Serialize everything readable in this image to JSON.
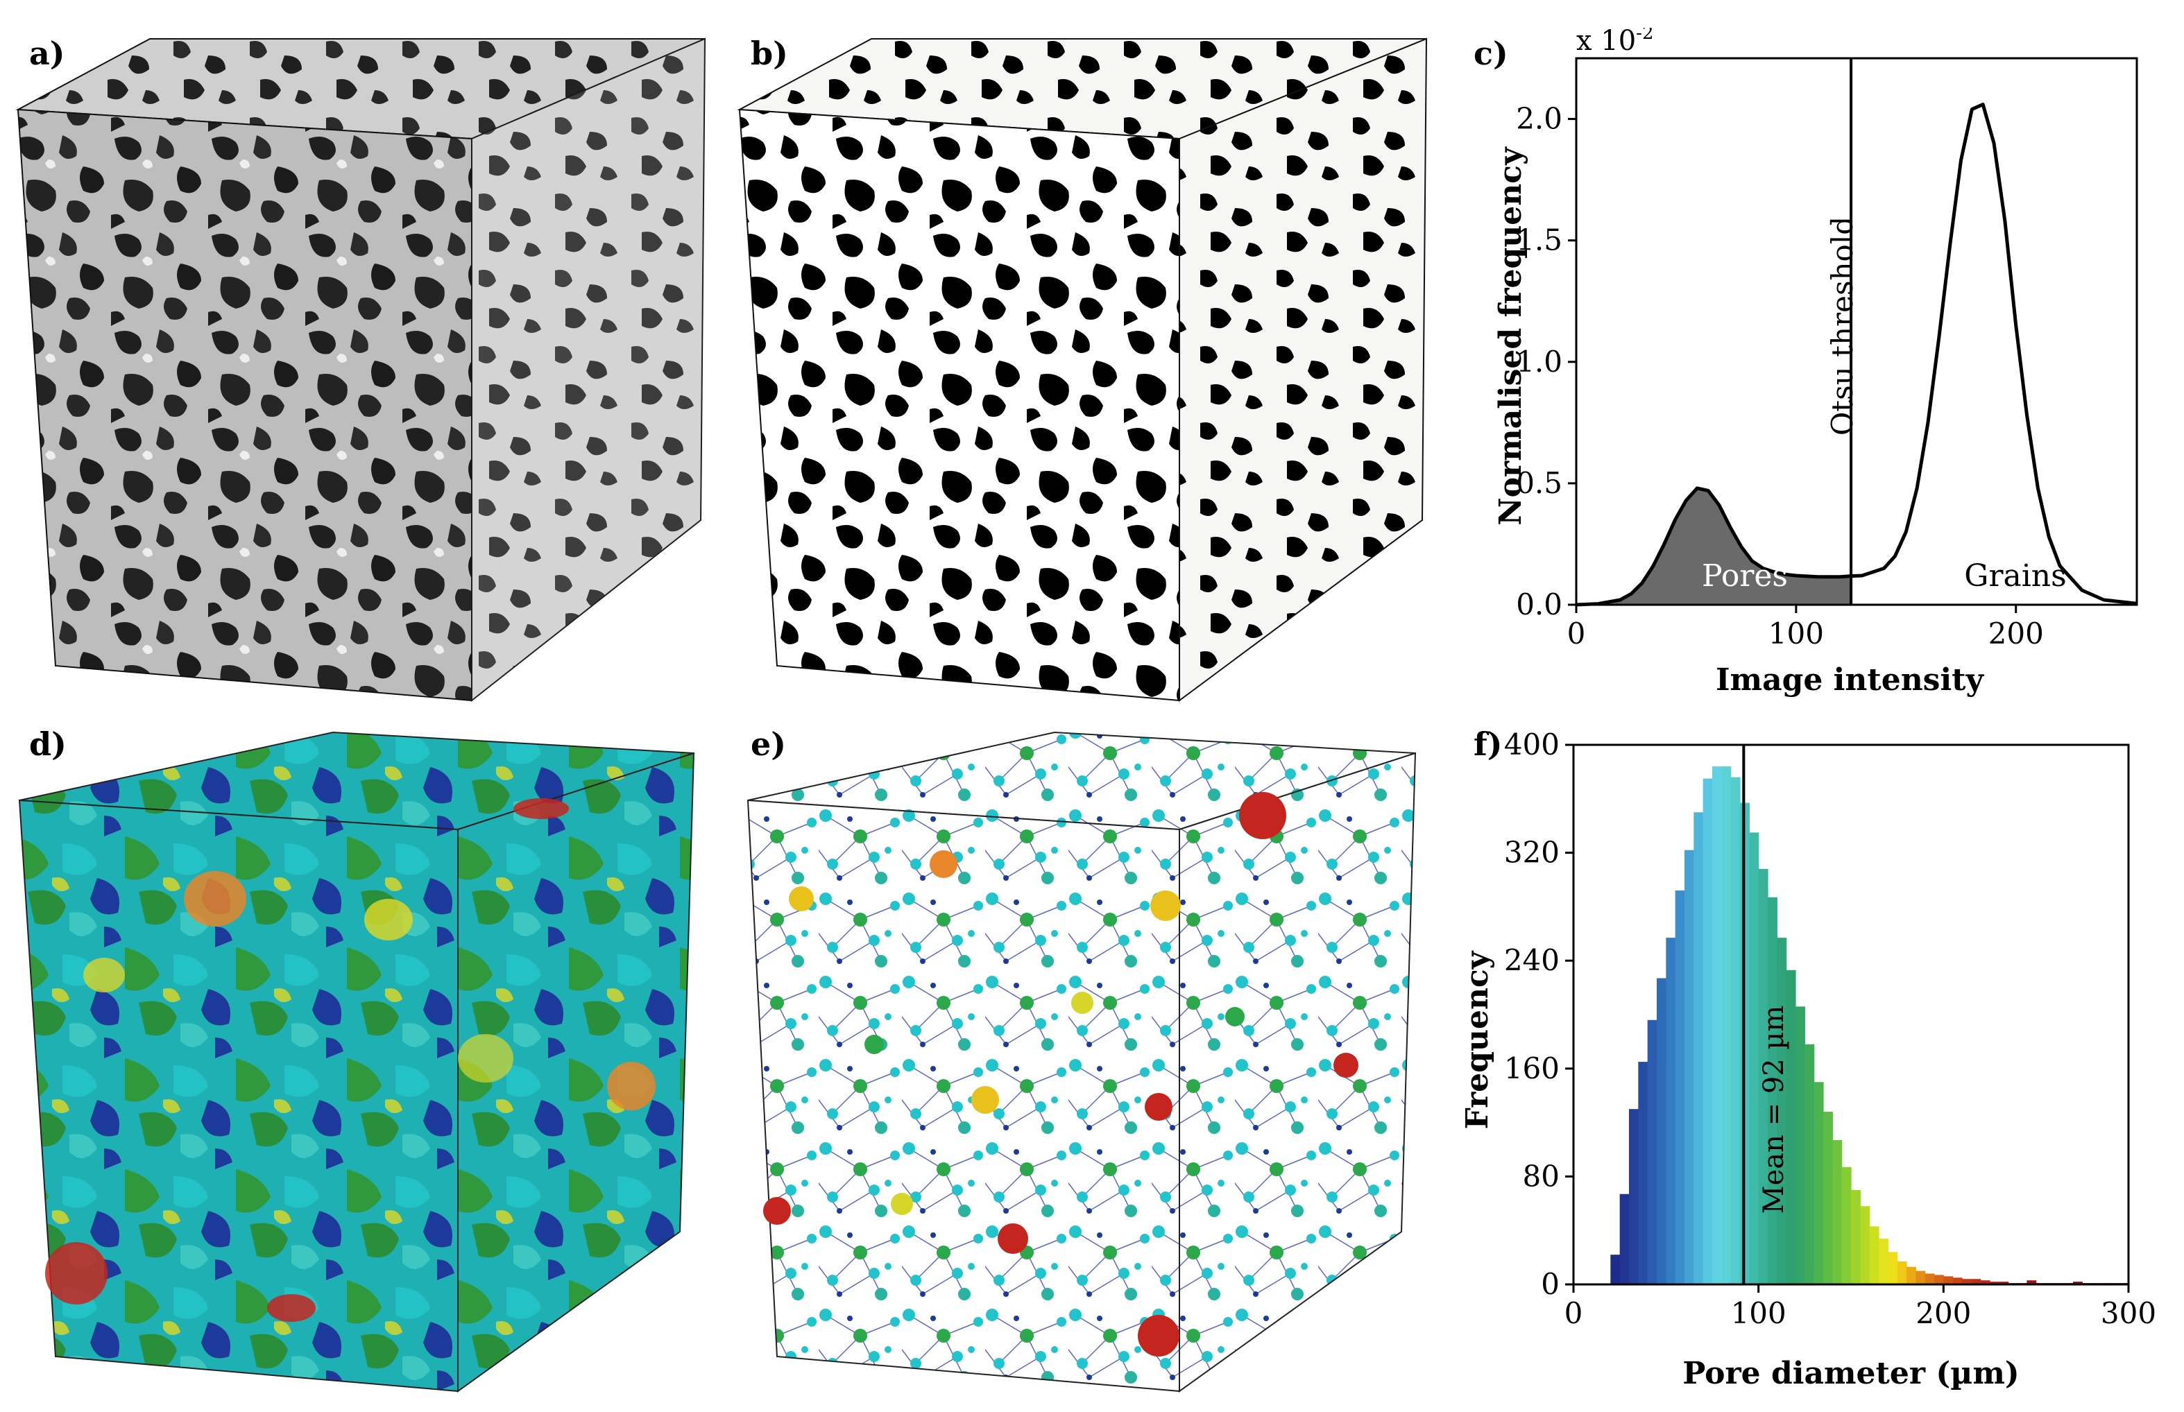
{
  "panels": {
    "a": "a)",
    "b": "b)",
    "c": "c)",
    "d": "d)",
    "e": "e)",
    "f": "f)"
  },
  "colors": {
    "pore_fill": "#6a6a6a",
    "grain_gray": "#bcbcbc",
    "pore_dark": "#202020",
    "binary_white": "#ffffff",
    "binary_black": "#000000",
    "segment_teal": "#19b3b3",
    "segment_green": "#2e9a3c",
    "segment_blue": "#1d3a9a",
    "segment_yellow": "#d6d62a",
    "segment_orange": "#e8862a",
    "segment_red": "#c4261f"
  },
  "chart_data": [
    {
      "type": "area",
      "panel": "c)",
      "title": "",
      "xlabel": "Image intensity",
      "ylabel": "Normalised frequency",
      "scale_note_base": "x 10",
      "scale_note_exp": "-2",
      "xlim": [
        0,
        255
      ],
      "ylim": [
        0,
        2.25
      ],
      "xticks": [
        "0",
        "100",
        "200"
      ],
      "xtick_values": [
        0,
        100,
        200
      ],
      "yticks": [
        "0.0",
        "0.5",
        "1.0",
        "1.5",
        "2.0"
      ],
      "ytick_values": [
        0.0,
        0.5,
        1.0,
        1.5,
        2.0
      ],
      "threshold": {
        "x": 125,
        "label": "Otsu threshold"
      },
      "region_labels": {
        "pores": "Pores",
        "grains": "Grains"
      },
      "x": [
        0,
        10,
        20,
        25,
        30,
        35,
        40,
        45,
        50,
        55,
        60,
        65,
        70,
        75,
        80,
        85,
        90,
        95,
        100,
        110,
        120,
        125,
        130,
        140,
        145,
        150,
        155,
        160,
        165,
        170,
        175,
        180,
        185,
        190,
        195,
        200,
        205,
        210,
        215,
        220,
        230,
        240,
        255
      ],
      "y": [
        0.0,
        0.004,
        0.02,
        0.045,
        0.09,
        0.16,
        0.25,
        0.35,
        0.43,
        0.48,
        0.47,
        0.41,
        0.32,
        0.24,
        0.18,
        0.15,
        0.135,
        0.125,
        0.12,
        0.115,
        0.115,
        0.118,
        0.12,
        0.15,
        0.2,
        0.3,
        0.48,
        0.75,
        1.1,
        1.48,
        1.83,
        2.04,
        2.06,
        1.9,
        1.58,
        1.15,
        0.78,
        0.48,
        0.28,
        0.16,
        0.06,
        0.02,
        0.005
      ]
    },
    {
      "type": "bar",
      "panel": "f)",
      "title": "",
      "xlabel": "Pore diameter (µm)",
      "ylabel": "Frequency",
      "xlim": [
        0,
        300
      ],
      "ylim": [
        0,
        400
      ],
      "xticks": [
        "0",
        "100",
        "200",
        "300"
      ],
      "xtick_values": [
        0,
        100,
        200,
        300
      ],
      "yticks": [
        "0",
        "80",
        "160",
        "240",
        "320",
        "400"
      ],
      "ytick_values": [
        0,
        80,
        160,
        240,
        320,
        400
      ],
      "mean": {
        "x": 92,
        "label": "Mean = 92 µm"
      },
      "bin_width": 5,
      "bin_starts": [
        20,
        25,
        30,
        35,
        40,
        45,
        50,
        55,
        60,
        65,
        70,
        75,
        80,
        85,
        90,
        95,
        100,
        105,
        110,
        115,
        120,
        125,
        130,
        135,
        140,
        145,
        150,
        155,
        160,
        165,
        170,
        175,
        180,
        185,
        190,
        195,
        200,
        205,
        210,
        215,
        220,
        225,
        230,
        235,
        240,
        245,
        250,
        255,
        260,
        265,
        270,
        275,
        280,
        285,
        290,
        295
      ],
      "values": [
        22,
        67,
        130,
        165,
        196,
        227,
        257,
        292,
        322,
        350,
        375,
        384,
        384,
        376,
        357,
        335,
        308,
        287,
        257,
        233,
        206,
        178,
        150,
        128,
        107,
        87,
        70,
        58,
        43,
        34,
        24,
        17,
        13,
        10,
        8,
        7,
        6,
        5,
        4,
        4,
        3,
        2,
        2,
        1,
        1,
        3,
        1,
        1,
        1,
        1,
        2,
        1,
        1,
        1,
        1,
        1
      ],
      "bar_colors": [
        "#1e2a8c",
        "#213493",
        "#243f9c",
        "#274ca6",
        "#2b5caf",
        "#2f6cb8",
        "#347cc2",
        "#3a8ecb",
        "#43a1d4",
        "#4db5dc",
        "#58c8e2",
        "#5fd3e3",
        "#5bd2d8",
        "#53cccb",
        "#49c3bb",
        "#40baa9",
        "#38b198",
        "#33a98a",
        "#30a37d",
        "#2ea070",
        "#33a465",
        "#3fab5a",
        "#4db34f",
        "#5dbc45",
        "#70c43c",
        "#86cc33",
        "#9dd32b",
        "#b5d924",
        "#cce01f",
        "#e0e31d",
        "#ede01b",
        "#f0c81a",
        "#eaaa18",
        "#e38f17",
        "#dc7916",
        "#d56615",
        "#ce5615",
        "#c64715",
        "#bf3b15",
        "#b83116",
        "#b22917",
        "#ab2218",
        "#a61e19",
        "#a01b1a",
        "#9b181b",
        "#96161c",
        "#92141d",
        "#8e131e",
        "#8b121f",
        "#881120",
        "#861121",
        "#841021",
        "#821022",
        "#801022",
        "#7e1022",
        "#7c1022"
      ]
    }
  ]
}
